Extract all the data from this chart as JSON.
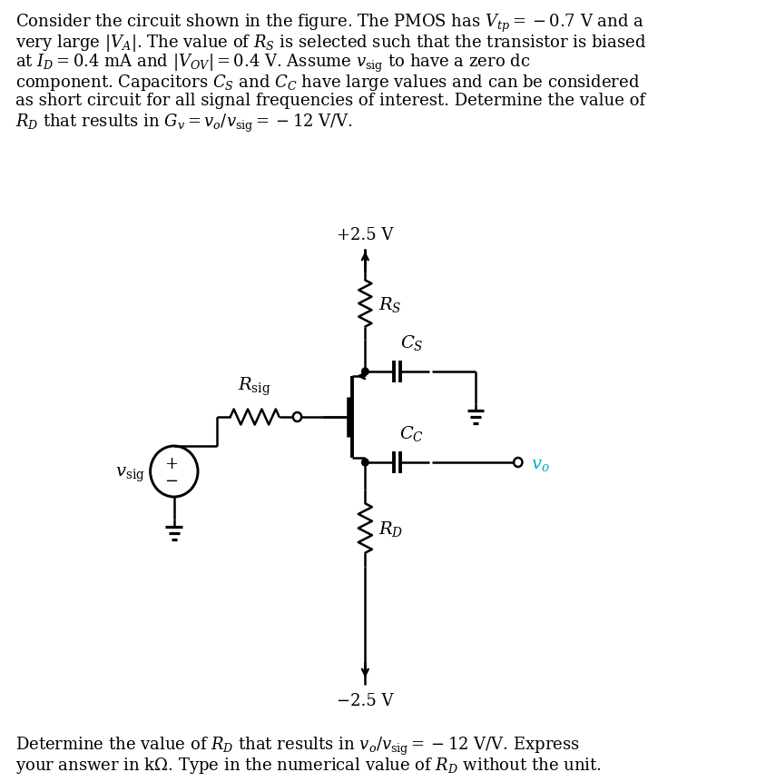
{
  "bg_color": "#ffffff",
  "line_color": "#000000",
  "figsize": [
    8.45,
    8.62
  ],
  "dpi": 100,
  "vdd_label": "+2.5 V",
  "vss_label": "−2.5 V",
  "rs_label": "$R_S$",
  "rd_label": "$R_D$",
  "rsig_label": "$R_\\mathrm{sig}$",
  "cs_label": "$C_S$",
  "cc_label": "$C_C$",
  "vo_label": "$v_o$",
  "vsig_label": "$v_\\mathrm{sig}$",
  "top_text_lines": [
    "Consider the circuit shown in the figure. The PMOS has $V_{tp} = -0.7$ V and a",
    "very large $|V_A|$. The value of $R_S$ is selected such that the transistor is biased",
    "at $I_D = 0.4$ mA and $|V_{OV}| = 0.4$ V. Assume $v_\\mathrm{sig}$ to have a zero dc",
    "component. Capacitors $C_S$ and $C_C$ have large values and can be considered",
    "as short circuit for all signal frequencies of interest. Determine the value of",
    "$R_D$ that results in $G_v = v_o/v_\\mathrm{sig} = -12$ V/V."
  ],
  "bottom_text_lines": [
    "Determine the value of $R_D$ that results in $v_o/v_\\mathrm{sig} = -12$ V/V. Express",
    "your answer in k$\\Omega$. Type in the numerical value of $R_D$ without the unit."
  ],
  "vo_color": "#00aacc"
}
